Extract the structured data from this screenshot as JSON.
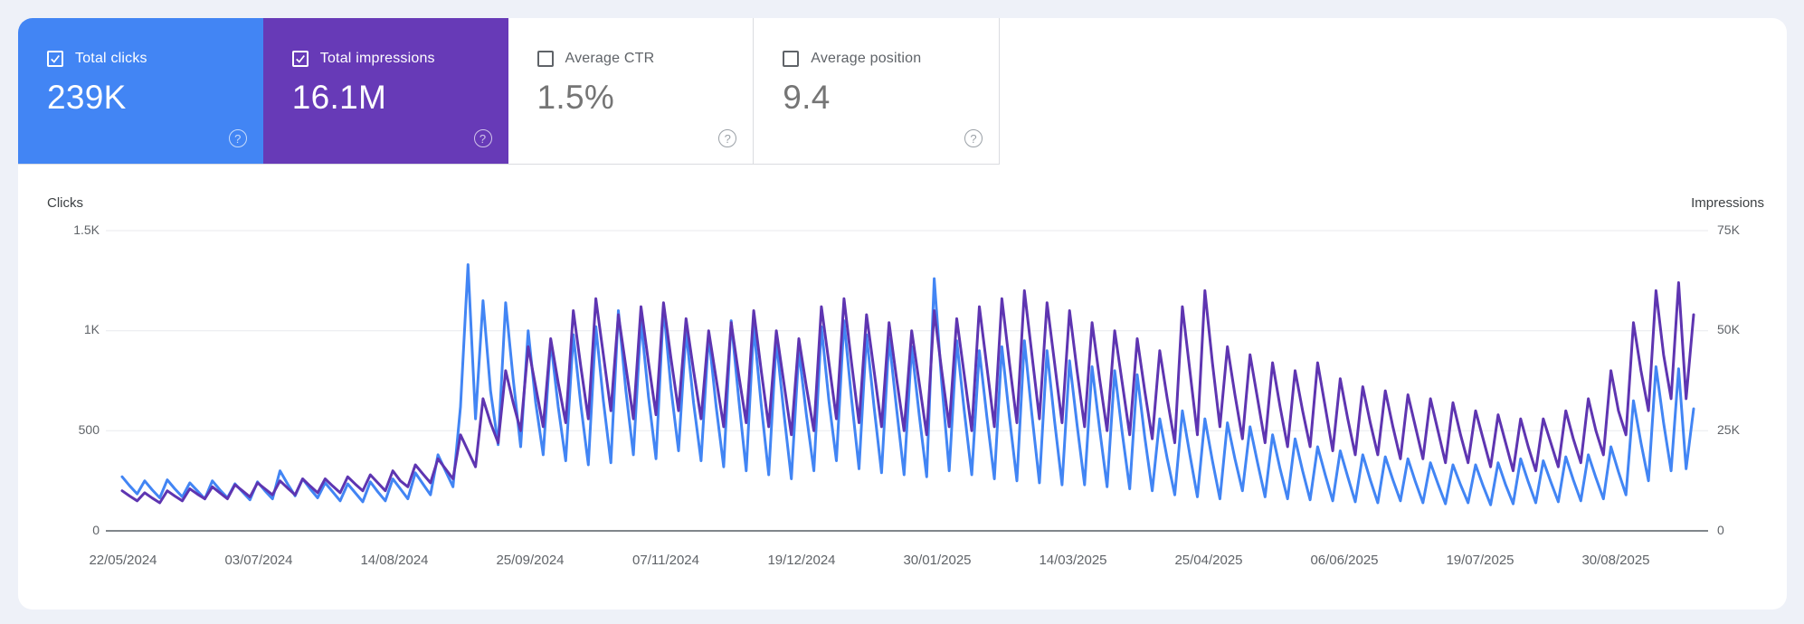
{
  "page": {
    "background_color": "#eef1f8",
    "panel_color": "#ffffff"
  },
  "metric_cards": [
    {
      "label": "Total clicks",
      "value": "239K",
      "checked": true,
      "background": "#4285f4",
      "label_color": "#ffffff",
      "value_color": "#ffffff",
      "help_color": "rgba(255,255,255,0.7)"
    },
    {
      "label": "Total impressions",
      "value": "16.1M",
      "checked": true,
      "background": "#673ab7",
      "label_color": "#ffffff",
      "value_color": "#ffffff",
      "help_color": "rgba(255,255,255,0.7)"
    },
    {
      "label": "Average CTR",
      "value": "1.5%",
      "checked": false,
      "background": "#ffffff",
      "label_color": "#5f6368",
      "value_color": "#757575",
      "help_color": "#9aa0a6"
    },
    {
      "label": "Average position",
      "value": "9.4",
      "checked": false,
      "background": "#ffffff",
      "label_color": "#5f6368",
      "value_color": "#757575",
      "help_color": "#9aa0a6"
    }
  ],
  "chart_data": {
    "type": "line",
    "grid": true,
    "legend_position": "none",
    "left_axis": {
      "label": "Clicks",
      "ticks": [
        "1.5K",
        "1K",
        "500",
        "0"
      ],
      "range": [
        0,
        1500
      ]
    },
    "right_axis": {
      "label": "Impressions",
      "ticks": [
        "75K",
        "50K",
        "25K",
        "0"
      ],
      "range": [
        0,
        75000
      ]
    },
    "x_tick_labels": [
      "22/05/2024",
      "03/07/2024",
      "14/08/2024",
      "25/09/2024",
      "07/11/2024",
      "19/12/2024",
      "30/01/2025",
      "14/03/2025",
      "25/04/2025",
      "06/06/2025",
      "19/07/2025",
      "30/08/2025"
    ],
    "series": [
      {
        "name": "clicks",
        "axis": "left",
        "color": "#4285f4",
        "values": [
          270,
          225,
          185,
          250,
          205,
          165,
          255,
          210,
          170,
          240,
          200,
          160,
          250,
          205,
          165,
          235,
          195,
          155,
          245,
          200,
          160,
          300,
          235,
          175,
          260,
          210,
          165,
          240,
          195,
          150,
          235,
          190,
          145,
          245,
          195,
          150,
          260,
          210,
          160,
          290,
          235,
          180,
          380,
          300,
          220,
          620,
          1330,
          560,
          1150,
          700,
          430,
          1140,
          760,
          420,
          1000,
          640,
          380,
          950,
          620,
          350,
          980,
          630,
          330,
          1020,
          650,
          340,
          1100,
          700,
          380,
          1050,
          670,
          360,
          1120,
          710,
          400,
          1000,
          640,
          350,
          980,
          620,
          320,
          1050,
          660,
          300,
          1020,
          630,
          280,
          950,
          590,
          260,
          900,
          580,
          300,
          1020,
          650,
          350,
          1050,
          660,
          310,
          980,
          620,
          290,
          960,
          610,
          280,
          920,
          580,
          270,
          1260,
          740,
          300,
          950,
          600,
          280,
          900,
          570,
          260,
          920,
          570,
          250,
          950,
          580,
          240,
          900,
          550,
          230,
          850,
          530,
          230,
          820,
          510,
          220,
          800,
          490,
          210,
          780,
          470,
          200,
          560,
          360,
          180,
          600,
          380,
          170,
          560,
          350,
          160,
          540,
          360,
          200,
          520,
          340,
          170,
          480,
          310,
          160,
          460,
          300,
          155,
          420,
          280,
          150,
          400,
          270,
          145,
          380,
          255,
          140,
          370,
          255,
          150,
          360,
          245,
          140,
          340,
          235,
          135,
          330,
          230,
          140,
          330,
          225,
          130,
          340,
          230,
          135,
          360,
          245,
          140,
          350,
          245,
          145,
          370,
          255,
          150,
          380,
          265,
          160,
          420,
          295,
          180,
          650,
          440,
          250,
          820,
          540,
          300,
          810,
          310,
          610
        ]
      },
      {
        "name": "impressions",
        "axis": "right",
        "color": "#5e35b1",
        "values": [
          10000,
          8700,
          7500,
          9500,
          8200,
          7000,
          10000,
          8700,
          7500,
          10500,
          9200,
          8000,
          11000,
          9500,
          8000,
          11500,
          10000,
          8500,
          12000,
          10500,
          9000,
          12500,
          10700,
          9000,
          13000,
          11200,
          9500,
          13000,
          11200,
          9500,
          13500,
          11700,
          10000,
          14000,
          12000,
          10000,
          15000,
          12500,
          11000,
          16500,
          14200,
          12000,
          18000,
          15500,
          13000,
          24000,
          20000,
          16000,
          33000,
          27000,
          22000,
          40000,
          32000,
          25000,
          46000,
          36000,
          26000,
          48000,
          37000,
          27000,
          55000,
          41000,
          28000,
          58000,
          44000,
          30000,
          54000,
          41000,
          28000,
          56000,
          42000,
          29000,
          57000,
          43000,
          30000,
          53000,
          40000,
          28000,
          50000,
          38000,
          26000,
          52000,
          39000,
          27000,
          55000,
          40000,
          26000,
          50000,
          37000,
          24000,
          48000,
          36000,
          25000,
          56000,
          42000,
          28000,
          58000,
          42000,
          27000,
          54000,
          40000,
          26000,
          52000,
          38000,
          25000,
          50000,
          37000,
          24000,
          55000,
          40000,
          26000,
          53000,
          39000,
          25000,
          56000,
          41000,
          26000,
          58000,
          42000,
          27000,
          60000,
          44000,
          28000,
          57000,
          42000,
          27000,
          55000,
          40000,
          26000,
          52000,
          38000,
          25000,
          50000,
          37000,
          24000,
          48000,
          35000,
          23000,
          45000,
          33000,
          22000,
          56000,
          40000,
          24000,
          60000,
          42000,
          26000,
          46000,
          34000,
          23000,
          44000,
          33000,
          22000,
          42000,
          31000,
          21000,
          40000,
          30000,
          21000,
          42000,
          31000,
          20000,
          38000,
          28000,
          19000,
          36000,
          27000,
          19000,
          35000,
          26000,
          18000,
          34000,
          26000,
          18000,
          33000,
          25000,
          17000,
          32000,
          24000,
          17000,
          30000,
          23000,
          16000,
          29000,
          22000,
          15000,
          28000,
          21000,
          15000,
          28000,
          22000,
          16000,
          30000,
          23000,
          17000,
          33000,
          25000,
          19000,
          40000,
          30000,
          24000,
          52000,
          40000,
          30000,
          60000,
          44000,
          33000,
          62000,
          33000,
          54000
        ]
      }
    ]
  }
}
